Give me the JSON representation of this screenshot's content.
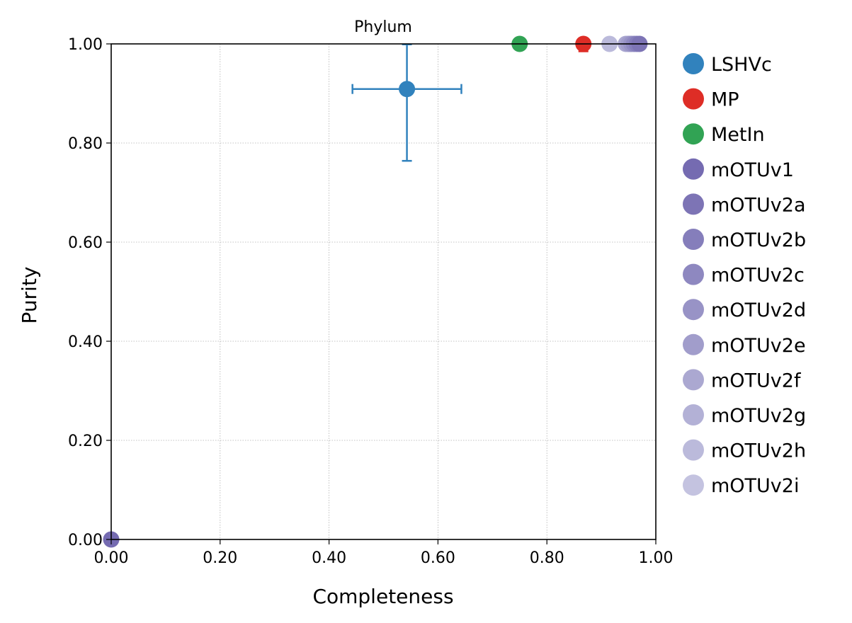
{
  "chart_data": {
    "type": "scatter",
    "title": "Phylum",
    "xlabel": "Completeness",
    "ylabel": "Purity",
    "xlim": [
      0,
      1
    ],
    "ylim": [
      0,
      1
    ],
    "xticks": [
      "0.00",
      "0.20",
      "0.40",
      "0.60",
      "0.80",
      "1.00"
    ],
    "yticks": [
      "0.00",
      "0.20",
      "0.40",
      "0.60",
      "0.80",
      "1.00"
    ],
    "grid": true,
    "legend_position": "outside-right",
    "series": [
      {
        "name": "LSHVc",
        "color": "#3182bd",
        "x": 0.543,
        "y": 0.909,
        "xerr": 0.1,
        "yerr": [
          0.145,
          0.09
        ]
      },
      {
        "name": "MP",
        "color": "#de2d26",
        "x": 0.867,
        "y": 1.0,
        "xerr": 0.01,
        "yerr": 0.015
      },
      {
        "name": "MetIn",
        "color": "#31a354",
        "x": 0.75,
        "y": 1.0
      },
      {
        "name": "mOTUv1",
        "color": "#756bb1",
        "x": 0.0,
        "y": 0.0
      },
      {
        "name": "mOTUv2a",
        "color": "#7d74b5",
        "x": 0.97,
        "y": 1.0
      },
      {
        "name": "mOTUv2b",
        "color": "#857ebb",
        "x": 0.965,
        "y": 1.0
      },
      {
        "name": "mOTUv2c",
        "color": "#8e88c0",
        "x": 0.96,
        "y": 1.0
      },
      {
        "name": "mOTUv2d",
        "color": "#9893c6",
        "x": 0.955,
        "y": 1.0
      },
      {
        "name": "mOTUv2e",
        "color": "#a19dcb",
        "x": 0.95,
        "y": 1.0
      },
      {
        "name": "mOTUv2f",
        "color": "#aba8d1",
        "x": 0.945,
        "y": 1.0
      },
      {
        "name": "mOTUv2g",
        "color": "#b3b1d6",
        "x": 0.95,
        "y": 1.0
      },
      {
        "name": "mOTUv2h",
        "color": "#bbbadb",
        "x": 0.915,
        "y": 1.0
      },
      {
        "name": "mOTUv2i",
        "color": "#c4c3e0",
        "x": 0.953,
        "y": 1.0
      }
    ]
  }
}
